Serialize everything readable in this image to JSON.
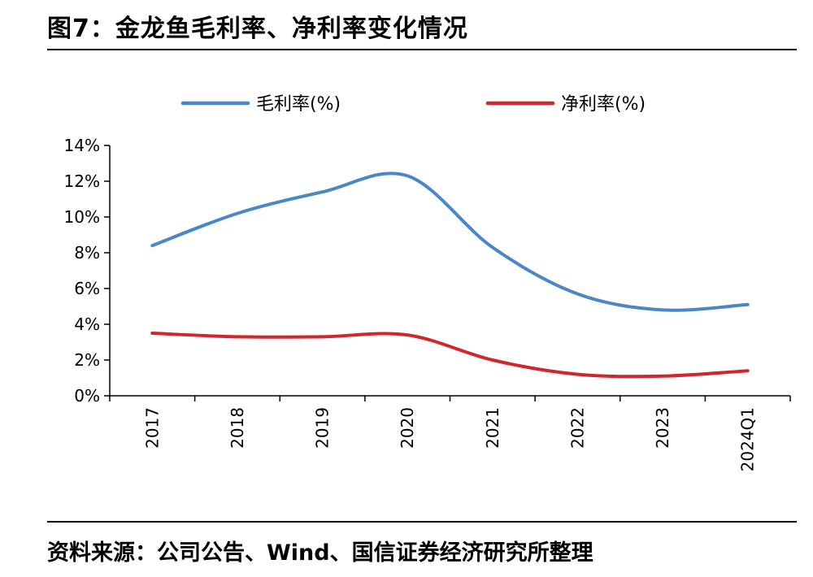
{
  "header": {
    "title": "图7：金龙鱼毛利率、净利率变化情况"
  },
  "footer": {
    "source": "资料来源：公司公告、Wind、国信证券经济研究所整理"
  },
  "colors": {
    "gross_margin": "#4a86c8",
    "net_margin": "#d0262d"
  },
  "chart_data": {
    "type": "line",
    "title": "",
    "xlabel": "",
    "ylabel": "",
    "categories": [
      "2017",
      "2018",
      "2019",
      "2020",
      "2021",
      "2022",
      "2023",
      "2024Q1"
    ],
    "y_tick_labels": [
      "0%",
      "2%",
      "4%",
      "6%",
      "8%",
      "10%",
      "12%",
      "14%"
    ],
    "ylim": [
      0,
      14
    ],
    "grid": false,
    "legend_position": "top",
    "series": [
      {
        "name": "毛利率(%)",
        "values": [
          8.4,
          10.2,
          11.4,
          12.3,
          8.3,
          5.7,
          4.8,
          5.1
        ]
      },
      {
        "name": "净利率(%)",
        "values": [
          3.5,
          3.3,
          3.3,
          3.4,
          2.0,
          1.2,
          1.1,
          1.4
        ]
      }
    ]
  }
}
